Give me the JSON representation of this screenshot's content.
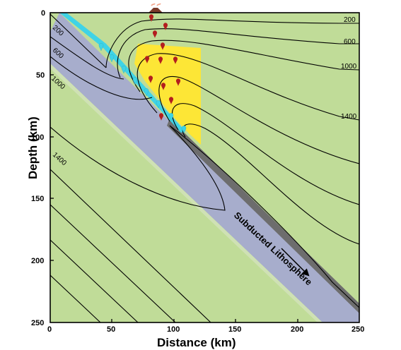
{
  "axes": {
    "x_title": "Distance (km)",
    "y_title": "Depth (km)",
    "x_ticks": [
      "0",
      "50",
      "100",
      "150",
      "200",
      "250"
    ],
    "y_ticks": [
      "0",
      "50",
      "100",
      "150",
      "200",
      "250"
    ]
  },
  "isotherm_labels_right": [
    "200",
    "600",
    "1000",
    "1400"
  ],
  "isotherm_labels_slab": [
    "200",
    "600",
    "1000",
    "1400"
  ],
  "slab_label": "Subducted Lithosphere",
  "colors": {
    "mantle": "#c0dc98",
    "slab": "#a7adcc",
    "melt_zone": "#fde636",
    "trench_water": "#3fd3e6",
    "slab_top_dark": "#6d6d6d",
    "red_drop": "#b31e1e",
    "cyan_drop": "#3fd3e6",
    "volcano_smoke": "#f2a38a"
  },
  "icons": {
    "red_drops": "melt-droplet-icon",
    "cyan_drops": "fluid-droplet-icon",
    "volcano": "volcano-icon",
    "arrow": "subduction-direction-arrow-icon"
  }
}
